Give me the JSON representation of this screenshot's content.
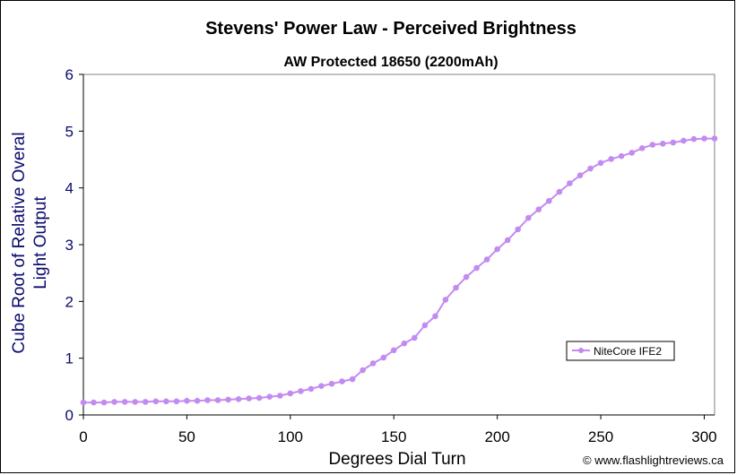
{
  "chart_data": {
    "type": "line",
    "title": "Stevens' Power Law - Perceived Brightness",
    "subtitle": "AW Protected 18650 (2200mAh)",
    "xlabel": "Degrees Dial Turn",
    "ylabel_lines": [
      "Cube Root of Relative Overal",
      "Light Output"
    ],
    "xlim": [
      0,
      305
    ],
    "ylim": [
      0,
      6
    ],
    "xticks": [
      0,
      50,
      100,
      150,
      200,
      250,
      300
    ],
    "yticks": [
      0,
      1,
      2,
      3,
      4,
      5,
      6
    ],
    "grid": false,
    "legend_position": "right",
    "series": [
      {
        "name": "NiteCore IFE2",
        "color": "#c38bf0",
        "x": [
          0,
          5,
          10,
          15,
          20,
          25,
          30,
          35,
          40,
          45,
          50,
          55,
          60,
          65,
          70,
          75,
          80,
          85,
          90,
          95,
          100,
          105,
          110,
          115,
          120,
          125,
          130,
          135,
          140,
          145,
          150,
          155,
          160,
          165,
          170,
          175,
          180,
          185,
          190,
          195,
          200,
          205,
          210,
          215,
          220,
          225,
          230,
          235,
          240,
          245,
          250,
          255,
          260,
          265,
          270,
          275,
          280,
          285,
          290,
          295,
          300,
          305
        ],
        "y": [
          0.22,
          0.22,
          0.22,
          0.23,
          0.23,
          0.23,
          0.23,
          0.24,
          0.24,
          0.24,
          0.25,
          0.25,
          0.26,
          0.26,
          0.27,
          0.28,
          0.29,
          0.3,
          0.32,
          0.34,
          0.38,
          0.42,
          0.46,
          0.51,
          0.55,
          0.59,
          0.63,
          0.79,
          0.91,
          1.01,
          1.14,
          1.26,
          1.36,
          1.58,
          1.74,
          2.03,
          2.24,
          2.43,
          2.59,
          2.74,
          2.92,
          3.08,
          3.27,
          3.47,
          3.62,
          3.77,
          3.93,
          4.08,
          4.22,
          4.34,
          4.44,
          4.51,
          4.56,
          4.62,
          4.7,
          4.76,
          4.78,
          4.8,
          4.83,
          4.86,
          4.87,
          4.87
        ]
      }
    ]
  },
  "credit": "© www.flashlightreviews.ca"
}
